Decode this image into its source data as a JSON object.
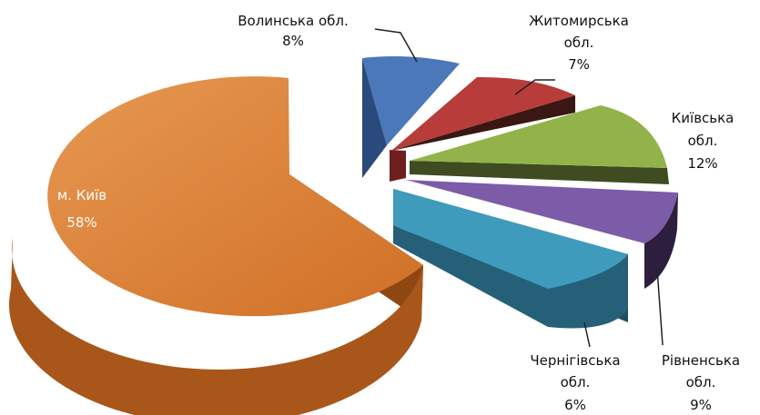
{
  "chart_data": {
    "type": "pie",
    "style": "3d-exploded",
    "slices": [
      {
        "label": "м. Київ",
        "value": 58,
        "pct": "58%",
        "color": "#D9782E",
        "label_inside": true
      },
      {
        "label": "Волинська обл.",
        "value": 8,
        "pct": "8%",
        "color": "#4A78B8"
      },
      {
        "label": "Житомирська обл.",
        "value": 7,
        "pct": "7%",
        "color": "#B83C3A"
      },
      {
        "label": "Київська обл.",
        "value": 12,
        "pct": "12%",
        "color": "#92B34A"
      },
      {
        "label": "Рівненська обл.",
        "value": 9,
        "pct": "9%",
        "color": "#7C5CA8"
      },
      {
        "label": "Чернігівська обл.",
        "value": 6,
        "pct": "6%",
        "color": "#3E9BBC"
      }
    ]
  }
}
